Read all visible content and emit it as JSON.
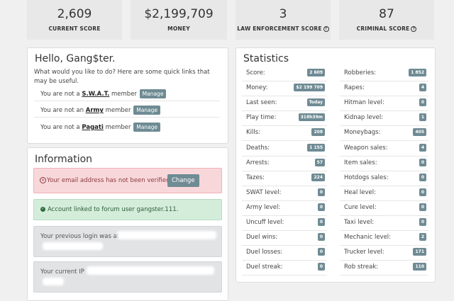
{
  "top_stats": [
    {
      "value": "2,609",
      "label": "CURRENT SCORE",
      "help": false
    },
    {
      "value": "$2,199,709",
      "label": "MONEY",
      "help": false
    },
    {
      "value": "3",
      "label": "LAW ENFORCEMENT SCORE",
      "help": true
    },
    {
      "value": "87",
      "label": "CRIMINAL SCORE",
      "help": true
    }
  ],
  "hello": {
    "title": "Hello, Gang$ter.",
    "intro": "What would you like to do? Here are some quick links that may be useful.",
    "memberships": [
      {
        "prefix": "You are not a ",
        "name": "S.W.A.T.",
        "suffix": " member",
        "button": "Manage"
      },
      {
        "prefix": "You are not an ",
        "name": "Army",
        "suffix": " member",
        "button": "Manage"
      },
      {
        "prefix": "You are not a ",
        "name": "Pagati",
        "suffix": " member",
        "button": "Manage"
      }
    ]
  },
  "information": {
    "title": "Information",
    "email_alert": "Your email address has not been verified.",
    "change_button": "Change",
    "forum_alert": "Account linked to forum user gangster.111.",
    "login_alert": "Your previous login was at",
    "ip_alert": "Your current IP"
  },
  "statistics": {
    "title": "Statistics",
    "left": [
      {
        "label": "Score:",
        "value": "2 609"
      },
      {
        "label": "Money:",
        "value": "$2 199 709"
      },
      {
        "label": "Last seen:",
        "value": "Today"
      },
      {
        "label": "Play time:",
        "value": "318h39m"
      },
      {
        "label": "Kills:",
        "value": "208"
      },
      {
        "label": "Deaths:",
        "value": "1 155"
      },
      {
        "label": "Arrests:",
        "value": "57"
      },
      {
        "label": "Tazes:",
        "value": "224"
      },
      {
        "label": "SWAT level:",
        "value": "0"
      },
      {
        "label": "Army level:",
        "value": "0"
      },
      {
        "label": "Uncuff level:",
        "value": "0"
      },
      {
        "label": "Duel wins:",
        "value": "0"
      },
      {
        "label": "Duel losses:",
        "value": "0"
      },
      {
        "label": "Duel streak:",
        "value": "0"
      }
    ],
    "right": [
      {
        "label": "Robberies:",
        "value": "1 852"
      },
      {
        "label": "Rapes:",
        "value": "4"
      },
      {
        "label": "Hitman level:",
        "value": "0"
      },
      {
        "label": "Kidnap level:",
        "value": "1"
      },
      {
        "label": "Moneybags:",
        "value": "405"
      },
      {
        "label": "Weapon sales:",
        "value": "4"
      },
      {
        "label": "Item sales:",
        "value": "0"
      },
      {
        "label": "Hotdogs sales:",
        "value": "0"
      },
      {
        "label": "Heal level:",
        "value": "0"
      },
      {
        "label": "Cure level:",
        "value": "0"
      },
      {
        "label": "Taxi level:",
        "value": "0"
      },
      {
        "label": "Mechanic level:",
        "value": "2"
      },
      {
        "label": "Trucker level:",
        "value": "171"
      },
      {
        "label": "Rob streak:",
        "value": "110"
      }
    ]
  }
}
